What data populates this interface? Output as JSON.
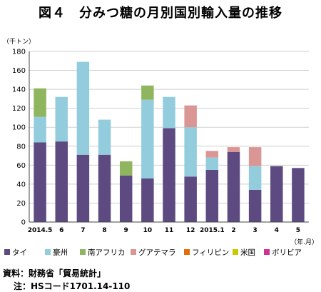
{
  "figure": {
    "title": "図４　分みつ糖の月別国別輸入量の推移",
    "notes": [
      "資料：財務省「貿易統計」",
      "注：HSコード1701.14-110"
    ]
  },
  "chart_data": {
    "type": "bar",
    "stacked": true,
    "ylabel": "（千トン）",
    "xlabel": "（年.月）",
    "ylim": [
      0,
      180
    ],
    "yticks": [
      0,
      20,
      40,
      60,
      80,
      100,
      120,
      140,
      160,
      180
    ],
    "grid": true,
    "legend_position": "bottom",
    "categories": [
      "2014.5",
      "6",
      "7",
      "8",
      "9",
      "10",
      "11",
      "12",
      "2015.1",
      "2",
      "3",
      "4",
      "5"
    ],
    "series": [
      {
        "name": "タイ",
        "color": "#5c4a80",
        "values": [
          84,
          85,
          71,
          71,
          49,
          46,
          99,
          48,
          55,
          74,
          34,
          59,
          57
        ]
      },
      {
        "name": "豪州",
        "color": "#93cddd",
        "values": [
          27,
          47,
          98,
          37,
          0,
          83,
          33,
          52,
          13,
          0,
          25,
          0,
          0
        ]
      },
      {
        "name": "南アフリカ",
        "color": "#8fb55e",
        "values": [
          30,
          0,
          0,
          0,
          15,
          15,
          0,
          0,
          0,
          0,
          0,
          0,
          0
        ]
      },
      {
        "name": "グアテマラ",
        "color": "#d99694",
        "values": [
          0,
          0,
          0,
          0,
          0,
          0,
          0,
          23,
          7,
          5,
          20,
          0,
          0
        ]
      },
      {
        "name": "フィリピン",
        "color": "#e46c0a",
        "values": [
          0,
          0,
          0,
          0,
          0,
          0,
          0,
          0,
          0,
          0,
          0,
          0,
          0
        ]
      },
      {
        "name": "米国",
        "color": "#c9c900",
        "values": [
          0,
          0,
          0,
          0,
          0,
          0,
          0,
          0,
          0,
          0,
          0,
          0,
          0
        ]
      },
      {
        "name": "ボリビア",
        "color": "#cc3399",
        "values": [
          0,
          0,
          0,
          0,
          0,
          0,
          0,
          0,
          0,
          0,
          0,
          0,
          0
        ]
      }
    ]
  }
}
